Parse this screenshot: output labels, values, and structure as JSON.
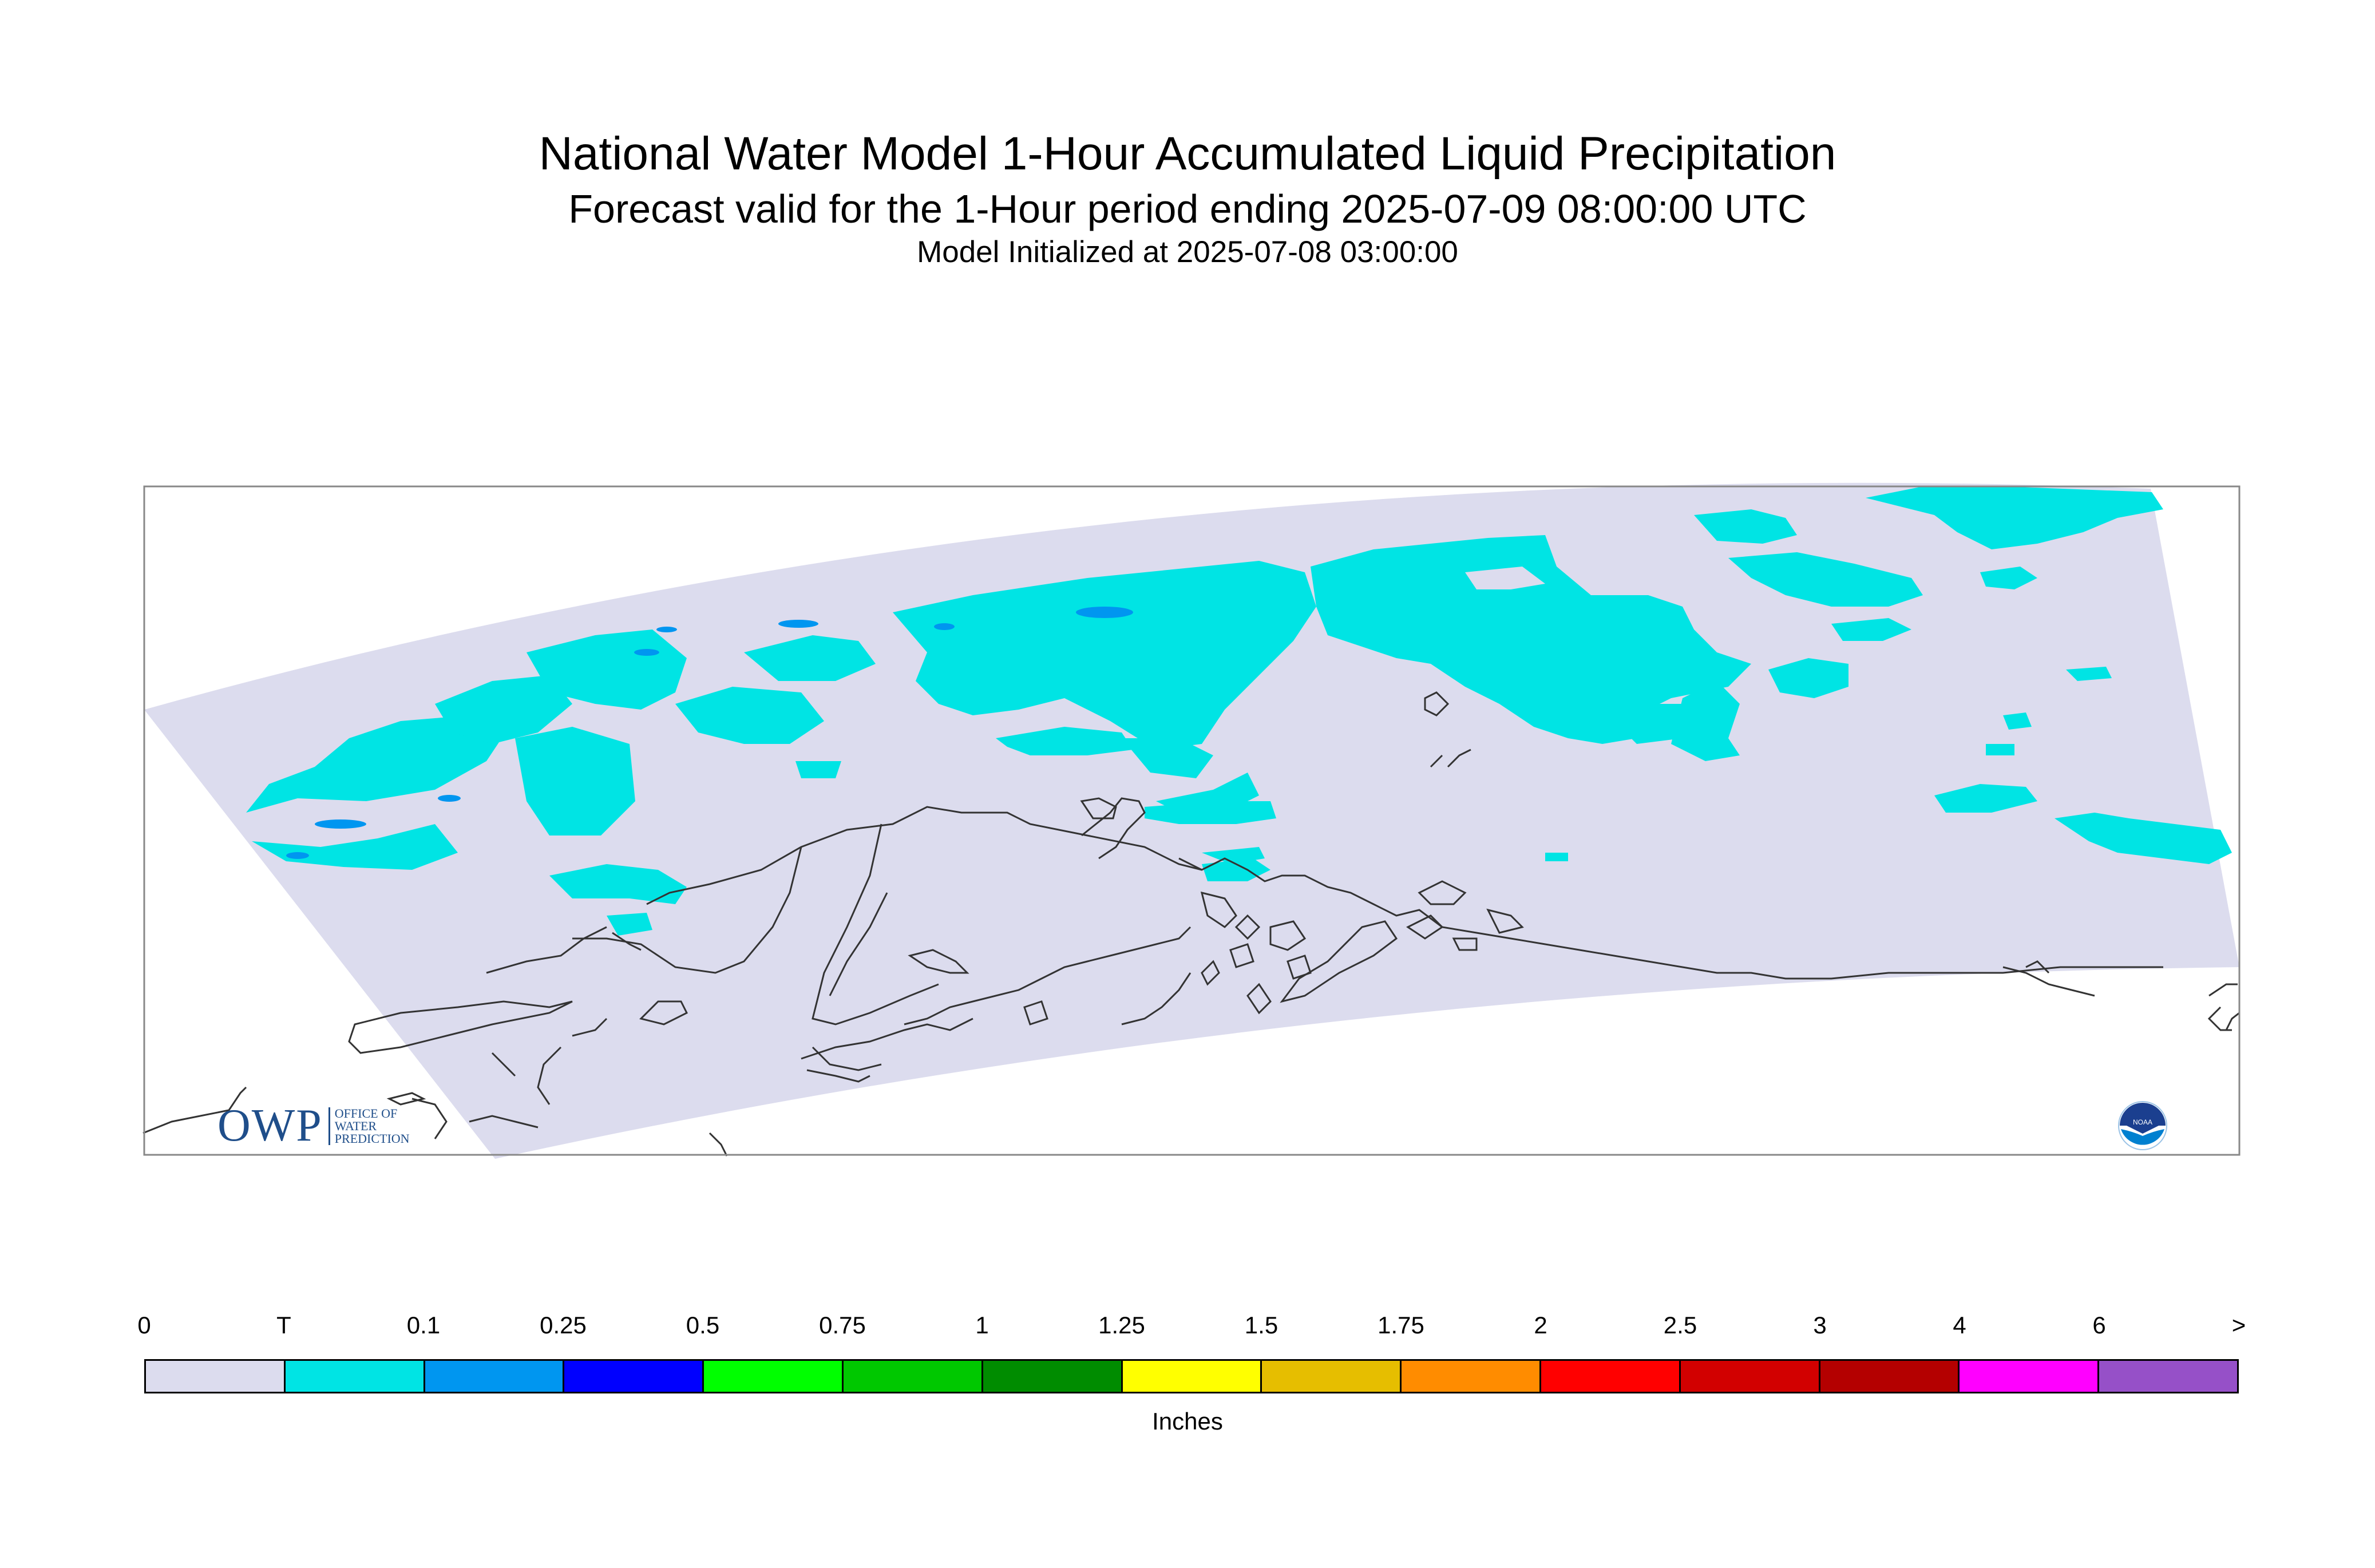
{
  "title": {
    "main": "National Water Model 1-Hour Accumulated Liquid Precipitation",
    "forecast": "Forecast valid for the 1-Hour period ending 2025-07-09 08:00:00 UTC",
    "init": "Model Initialized at 2025-07-08 03:00:00"
  },
  "colors": {
    "background_field": "#dcdcee",
    "trace": "#00e4e4",
    "light": "#0096f0",
    "coast": "#333333"
  },
  "legend": {
    "units": "Inches",
    "ticks": [
      "0",
      "T",
      "0.1",
      "0.25",
      "0.5",
      "0.75",
      "1",
      "1.25",
      "1.5",
      "1.75",
      "2",
      "2.5",
      "3",
      "4",
      "6",
      ">"
    ],
    "bins": [
      "#dcdcee",
      "#00e4e4",
      "#0096f0",
      "#0000ff",
      "#00ff00",
      "#00c800",
      "#008c00",
      "#ffff00",
      "#e6be00",
      "#ff8c00",
      "#ff0000",
      "#d20000",
      "#b40000",
      "#ff00ff",
      "#9650c8"
    ]
  },
  "logos": {
    "owp_abbr": "OWP",
    "owp_line1": "OFFICE OF",
    "owp_line2": "WATER",
    "owp_line3": "PREDICTION",
    "noaa": "NOAA"
  }
}
